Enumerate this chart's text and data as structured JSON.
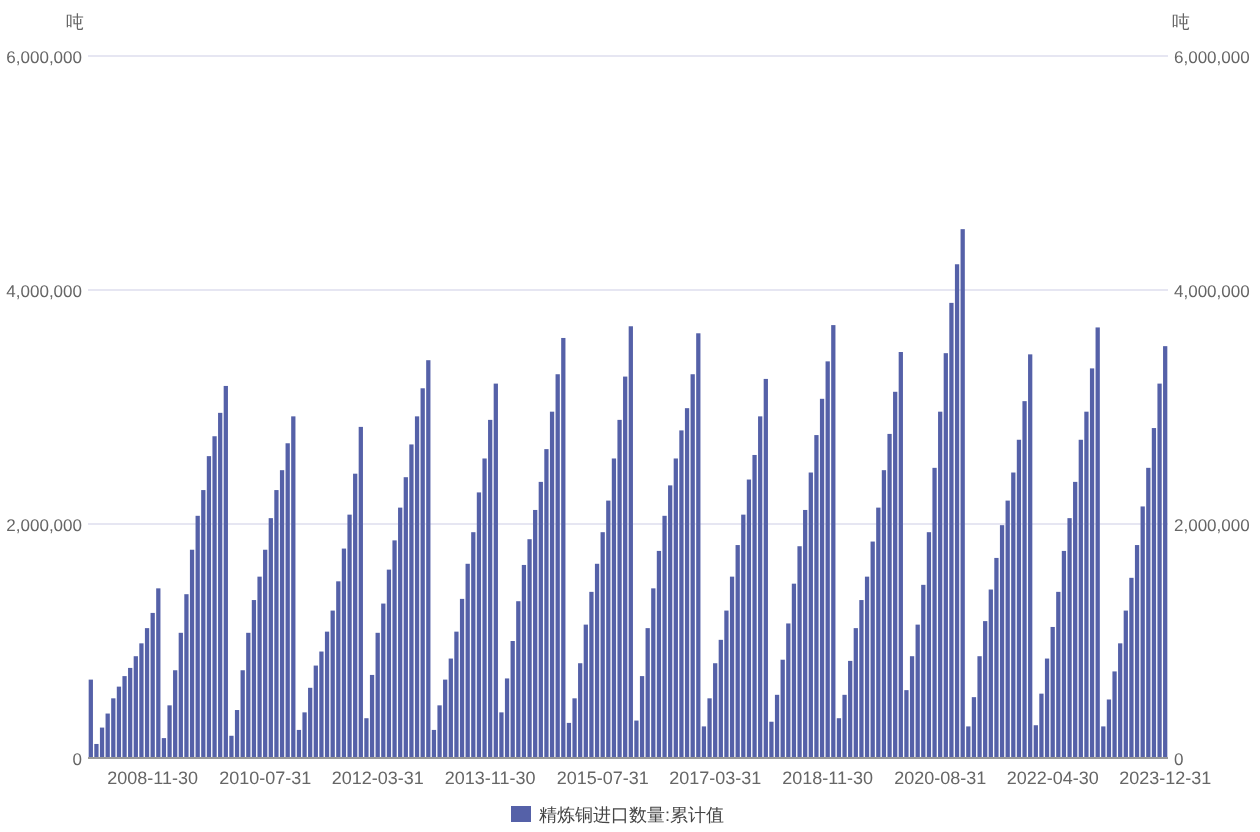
{
  "chart_data": {
    "type": "bar",
    "ylabel": "吨",
    "y2label": "吨",
    "categories": [
      null,
      null,
      null,
      null,
      null,
      null,
      null,
      null,
      null,
      null,
      null,
      "2008-11-30",
      null,
      null,
      null,
      null,
      null,
      null,
      null,
      null,
      null,
      null,
      null,
      null,
      null,
      null,
      null,
      null,
      null,
      null,
      null,
      "2010-07-31",
      null,
      null,
      null,
      null,
      null,
      null,
      null,
      null,
      null,
      null,
      null,
      null,
      null,
      null,
      null,
      null,
      null,
      null,
      null,
      "2012-03-31",
      null,
      null,
      null,
      null,
      null,
      null,
      null,
      null,
      null,
      null,
      null,
      null,
      null,
      null,
      null,
      null,
      null,
      null,
      null,
      "2013-11-30",
      null,
      null,
      null,
      null,
      null,
      null,
      null,
      null,
      null,
      null,
      null,
      null,
      null,
      null,
      null,
      null,
      null,
      null,
      null,
      "2015-07-31",
      null,
      null,
      null,
      null,
      null,
      null,
      null,
      null,
      null,
      null,
      null,
      null,
      null,
      null,
      null,
      null,
      null,
      null,
      null,
      "2017-03-31",
      null,
      null,
      null,
      null,
      null,
      null,
      null,
      null,
      null,
      null,
      null,
      null,
      null,
      null,
      null,
      null,
      null,
      null,
      null,
      "2018-11-30",
      null,
      null,
      null,
      null,
      null,
      null,
      null,
      null,
      null,
      null,
      null,
      null,
      null,
      null,
      null,
      null,
      null,
      null,
      null,
      "2020-08-31",
      null,
      null,
      null,
      null,
      null,
      null,
      null,
      null,
      null,
      null,
      null,
      null,
      null,
      null,
      null,
      null,
      null,
      null,
      null,
      "2022-04-30",
      null,
      null,
      null,
      null,
      null,
      null,
      null,
      null,
      null,
      null,
      null,
      null,
      null,
      null,
      null,
      null,
      null,
      null,
      null,
      "2023-12-31"
    ],
    "series": [
      {
        "name": "精炼铜进口数量:累计值",
        "color": "#5561a8",
        "values": [
          670000,
          120000,
          260000,
          380000,
          510000,
          610000,
          700000,
          770000,
          870000,
          980000,
          1110000,
          1240000,
          1450000,
          170000,
          450000,
          750000,
          1070000,
          1400000,
          1780000,
          2070000,
          2290000,
          2580000,
          2750000,
          2950000,
          3180000,
          190000,
          410000,
          750000,
          1070000,
          1350000,
          1550000,
          1780000,
          2050000,
          2290000,
          2460000,
          2690000,
          2920000,
          240000,
          390000,
          600000,
          790000,
          910000,
          1080000,
          1260000,
          1510000,
          1790000,
          2080000,
          2430000,
          2830000,
          340000,
          710000,
          1070000,
          1320000,
          1610000,
          1860000,
          2140000,
          2400000,
          2680000,
          2920000,
          3160000,
          3400000,
          240000,
          450000,
          670000,
          850000,
          1080000,
          1360000,
          1660000,
          1930000,
          2270000,
          2560000,
          2890000,
          3200000,
          390000,
          680000,
          1000000,
          1340000,
          1650000,
          1870000,
          2120000,
          2360000,
          2640000,
          2960000,
          3280000,
          3590000,
          300000,
          510000,
          810000,
          1140000,
          1420000,
          1660000,
          1930000,
          2200000,
          2560000,
          2890000,
          3260000,
          3690000,
          320000,
          700000,
          1110000,
          1450000,
          1770000,
          2070000,
          2330000,
          2560000,
          2800000,
          2990000,
          3280000,
          3630000,
          270000,
          510000,
          810000,
          1010000,
          1260000,
          1550000,
          1820000,
          2080000,
          2380000,
          2590000,
          2920000,
          3240000,
          310000,
          540000,
          840000,
          1150000,
          1490000,
          1810000,
          2120000,
          2440000,
          2760000,
          3070000,
          3390000,
          3700000,
          340000,
          540000,
          830000,
          1110000,
          1350000,
          1550000,
          1850000,
          2140000,
          2460000,
          2770000,
          3130000,
          3470000,
          580000,
          870000,
          1140000,
          1480000,
          1930000,
          2480000,
          2960000,
          3460000,
          3890000,
          4220000,
          4520000,
          270000,
          520000,
          870000,
          1170000,
          1440000,
          1710000,
          1990000,
          2200000,
          2440000,
          2720000,
          3050000,
          3450000,
          280000,
          550000,
          850000,
          1120000,
          1420000,
          1770000,
          2050000,
          2360000,
          2720000,
          2960000,
          3330000,
          3680000,
          270000,
          500000,
          740000,
          980000,
          1260000,
          1540000,
          1820000,
          2150000,
          2480000,
          2820000,
          3200000,
          3520000
        ]
      }
    ],
    "ylim": [
      0,
      6000000
    ],
    "yticks": [
      {
        "value": 0,
        "label": "0"
      },
      {
        "value": 2000000,
        "label": "2,000,000"
      },
      {
        "value": 4000000,
        "label": "4,000,000"
      },
      {
        "value": 6000000,
        "label": "6,000,000"
      }
    ],
    "y2lim": [
      0,
      6000000
    ],
    "y2ticks": [
      {
        "value": 0,
        "label": "0"
      },
      {
        "value": 2000000,
        "label": "2,000,000"
      },
      {
        "value": 4000000,
        "label": "4,000,000"
      },
      {
        "value": 6000000,
        "label": "6,000,000"
      }
    ],
    "grid": "y",
    "legend": "bottom"
  }
}
